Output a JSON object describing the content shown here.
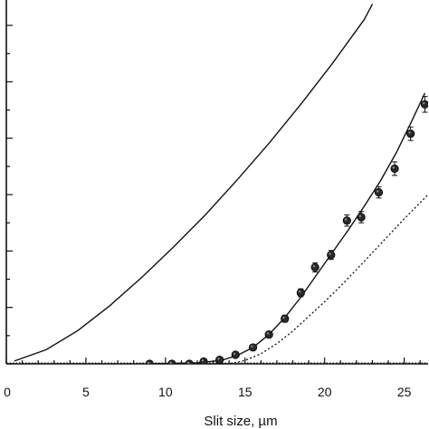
{
  "chart_data": {
    "type": "scatter",
    "xlabel": "Slit size, µm",
    "ylabel": "",
    "title": "",
    "xlim": [
      0,
      26.5
    ],
    "ylim": [
      0,
      6.45
    ],
    "x_ticks": [
      0,
      5,
      10,
      15,
      20,
      25
    ],
    "grid": false,
    "legend": "none",
    "colors": {
      "axis": "#111111",
      "series": "#111111",
      "marker_fill": "#2a2a2a"
    },
    "series": [
      {
        "kind": "curve",
        "style": "solid",
        "x": [
          0.5,
          2.5,
          4.5,
          6.5,
          8.5,
          10.5,
          12.5,
          14.5,
          16.5,
          18.5,
          20.5,
          22.5,
          23.0
        ],
        "y": [
          0.05,
          0.25,
          0.59,
          1.03,
          1.53,
          2.07,
          2.64,
          3.26,
          3.91,
          4.6,
          5.33,
          6.11,
          6.38
        ]
      },
      {
        "kind": "curve",
        "style": "dotted",
        "x": [
          0.0,
          14.0,
          15.0,
          16.0,
          17.0,
          18.0,
          19.0,
          20.0,
          21.0,
          22.0,
          23.0,
          24.0,
          25.0,
          26.5
        ],
        "y": [
          0.0,
          0.0,
          0.06,
          0.18,
          0.36,
          0.58,
          0.84,
          1.1,
          1.38,
          1.67,
          1.97,
          2.27,
          2.57,
          3.0
        ]
      },
      {
        "kind": "fit",
        "style": "solid",
        "x": [
          9.0,
          12.0,
          13.5,
          14.5,
          15.5,
          16.5,
          17.5,
          18.5,
          19.5,
          20.5,
          21.5,
          22.5,
          23.5,
          24.5,
          25.5,
          26.3
        ],
        "y": [
          0.0,
          0.02,
          0.06,
          0.15,
          0.29,
          0.52,
          0.82,
          1.18,
          1.58,
          1.98,
          2.38,
          2.8,
          3.24,
          3.74,
          4.32,
          4.8
        ]
      },
      {
        "kind": "points",
        "x": [
          9.0,
          10.4,
          11.5,
          12.4,
          13.4,
          14.4,
          15.5,
          16.5,
          17.5,
          18.5,
          19.4,
          20.4,
          21.4,
          22.3,
          23.4,
          24.4,
          25.4,
          26.3
        ],
        "y": [
          0.0,
          0.0,
          0.0,
          0.04,
          0.07,
          0.16,
          0.29,
          0.52,
          0.8,
          1.26,
          1.71,
          1.93,
          2.54,
          2.6,
          3.04,
          3.46,
          4.08,
          4.6
        ],
        "err": [
          0.02,
          0.02,
          0.02,
          0.03,
          0.03,
          0.04,
          0.04,
          0.05,
          0.06,
          0.07,
          0.08,
          0.08,
          0.1,
          0.1,
          0.1,
          0.12,
          0.12,
          0.14
        ]
      }
    ]
  }
}
